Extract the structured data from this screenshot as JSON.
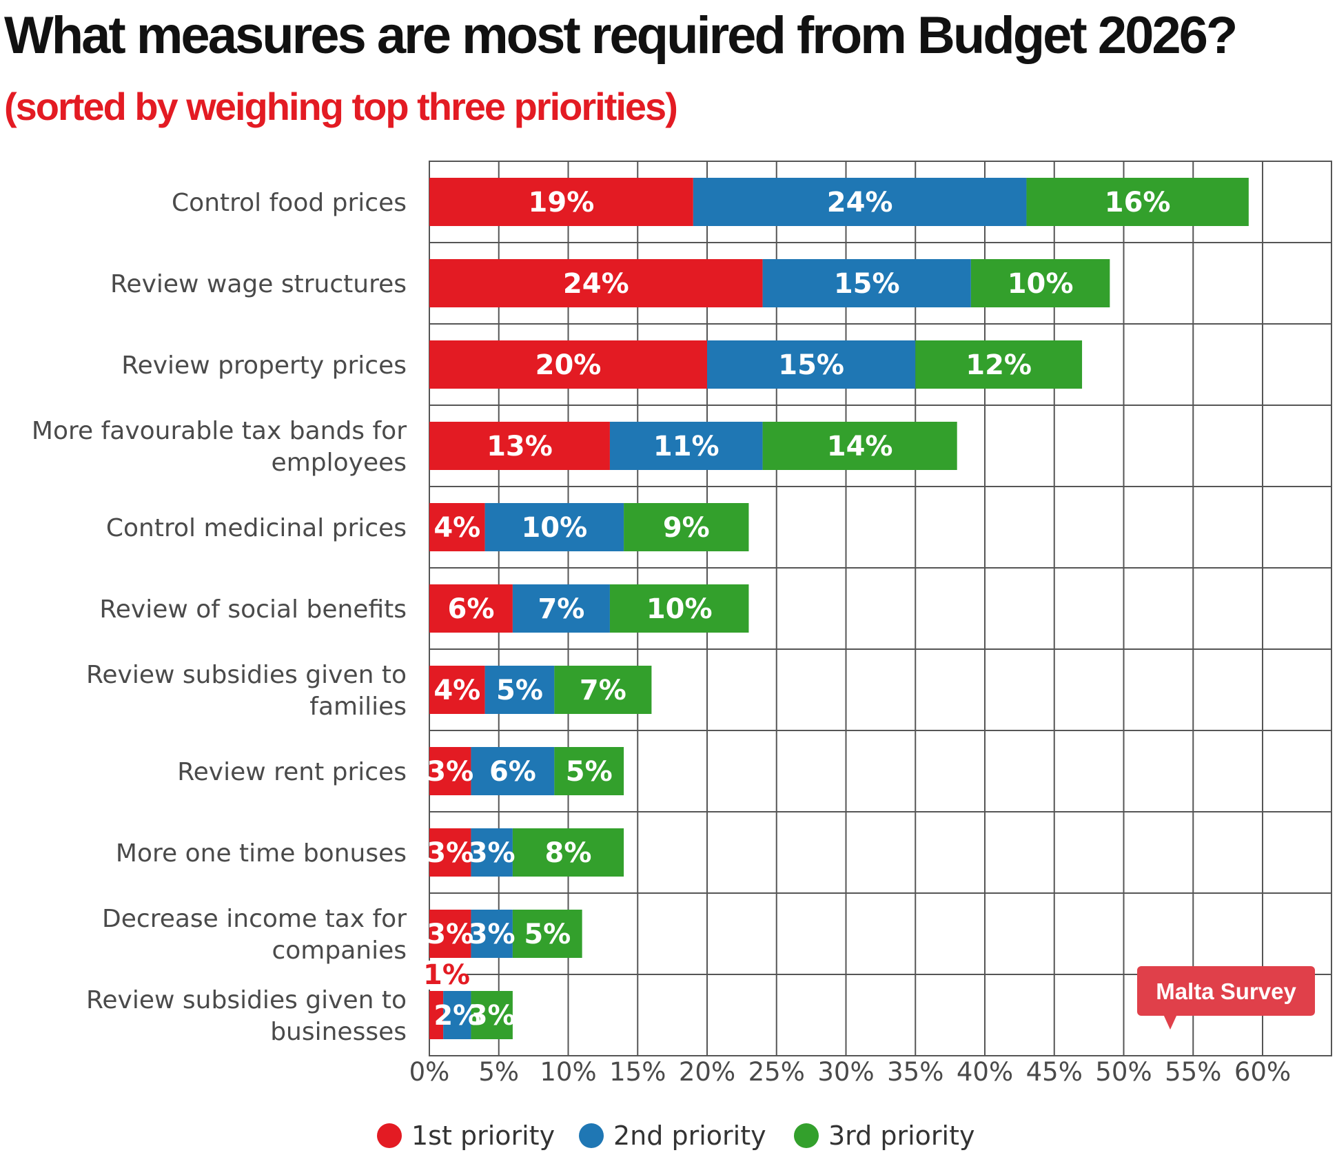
{
  "chart_data": {
    "type": "bar",
    "orientation": "horizontal",
    "stacked": true,
    "title": "What measures are most required from Budget 2026?",
    "subtitle": "(sorted by weighing top three priorities)",
    "categories": [
      [
        "Control food prices"
      ],
      [
        "Review wage structures"
      ],
      [
        "Review property prices"
      ],
      [
        "More favourable tax bands for",
        "employees"
      ],
      [
        "Control medicinal prices"
      ],
      [
        "Review of social benefits"
      ],
      [
        "Review subsidies given to",
        "families"
      ],
      [
        "Review rent prices"
      ],
      [
        "More one time bonuses"
      ],
      [
        "Decrease income tax for",
        "companies"
      ],
      [
        "Review subsidies given to",
        "businesses"
      ]
    ],
    "series": [
      {
        "name": "1st priority",
        "color": "#e31b23",
        "values": [
          19,
          24,
          20,
          13,
          4,
          6,
          4,
          3,
          3,
          3,
          1
        ],
        "labels": [
          "19%",
          "24%",
          "20%",
          "13%",
          "4%",
          "6%",
          "4%",
          "3%",
          "3%",
          "3%",
          "1%"
        ]
      },
      {
        "name": "2nd priority",
        "color": "#1f77b4",
        "values": [
          24,
          15,
          15,
          11,
          10,
          7,
          5,
          6,
          3,
          3,
          2
        ],
        "labels": [
          "24%",
          "15%",
          "15%",
          "11%",
          "10%",
          "7%",
          "5%",
          "6%",
          "3%",
          "3%",
          "2%"
        ]
      },
      {
        "name": "3rd priority",
        "color": "#33a02c",
        "values": [
          16,
          10,
          12,
          14,
          9,
          10,
          7,
          5,
          8,
          5,
          3
        ],
        "labels": [
          "16%",
          "10%",
          "12%",
          "14%",
          "9%",
          "10%",
          "7%",
          "5%",
          "8%",
          "5%",
          "3%"
        ]
      }
    ],
    "xlim": [
      0,
      65
    ],
    "ticks": [
      0,
      5,
      10,
      15,
      20,
      25,
      30,
      35,
      40,
      45,
      50,
      55,
      60
    ],
    "tick_labels": [
      "0%",
      "5%",
      "10%",
      "15%",
      "20%",
      "25%",
      "30%",
      "35%",
      "40%",
      "45%",
      "50%",
      "55%",
      "60%"
    ],
    "grid": true,
    "legend_position": "bottom"
  },
  "badge": {
    "text": "Malta Survey",
    "color": "#e0404a"
  }
}
